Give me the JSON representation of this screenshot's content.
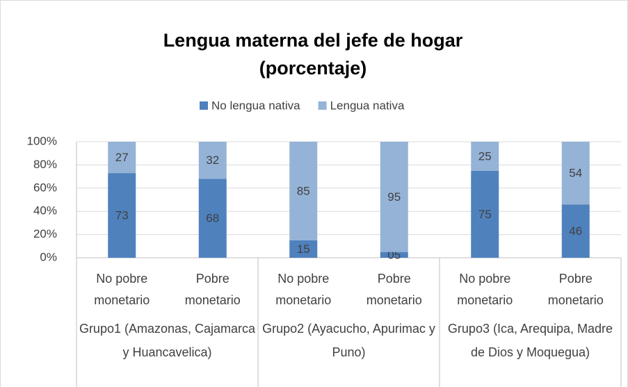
{
  "chart_data": {
    "type": "stacked_bar",
    "title": "Lengua materna del jefe de hogar (porcentaje)",
    "categories": [
      "No pobre monetario",
      "Pobre monetario",
      "No pobre monetario",
      "Pobre monetario",
      "No pobre monetario",
      "Pobre monetario"
    ],
    "groups": [
      "Grupo1 (Amazonas, Cajamarca y Huancavelica)",
      "Grupo2 (Ayacucho, Apurimac y Puno)",
      "Grupo3 (Ica, Arequipa, Madre de Dios y Moquegua)"
    ],
    "series": [
      {
        "name": "No lengua nativa",
        "color": "#4f81bd",
        "values": [
          73,
          68,
          15,
          5,
          75,
          46
        ],
        "value_labels": [
          "73",
          "68",
          "15",
          "05",
          "75",
          "46"
        ]
      },
      {
        "name": "Lengua nativa",
        "color": "#95b3d7",
        "values": [
          27,
          32,
          85,
          95,
          25,
          54
        ]
      }
    ],
    "ylim": [
      0,
      100
    ],
    "yticks": [
      {
        "value": 0,
        "label": "0%"
      },
      {
        "value": 20,
        "label": "20%"
      },
      {
        "value": 40,
        "label": "40%"
      },
      {
        "value": 60,
        "label": "60%"
      },
      {
        "value": 80,
        "label": "80%"
      },
      {
        "value": 100,
        "label": "100%"
      }
    ],
    "grid": true,
    "legend": "top"
  }
}
